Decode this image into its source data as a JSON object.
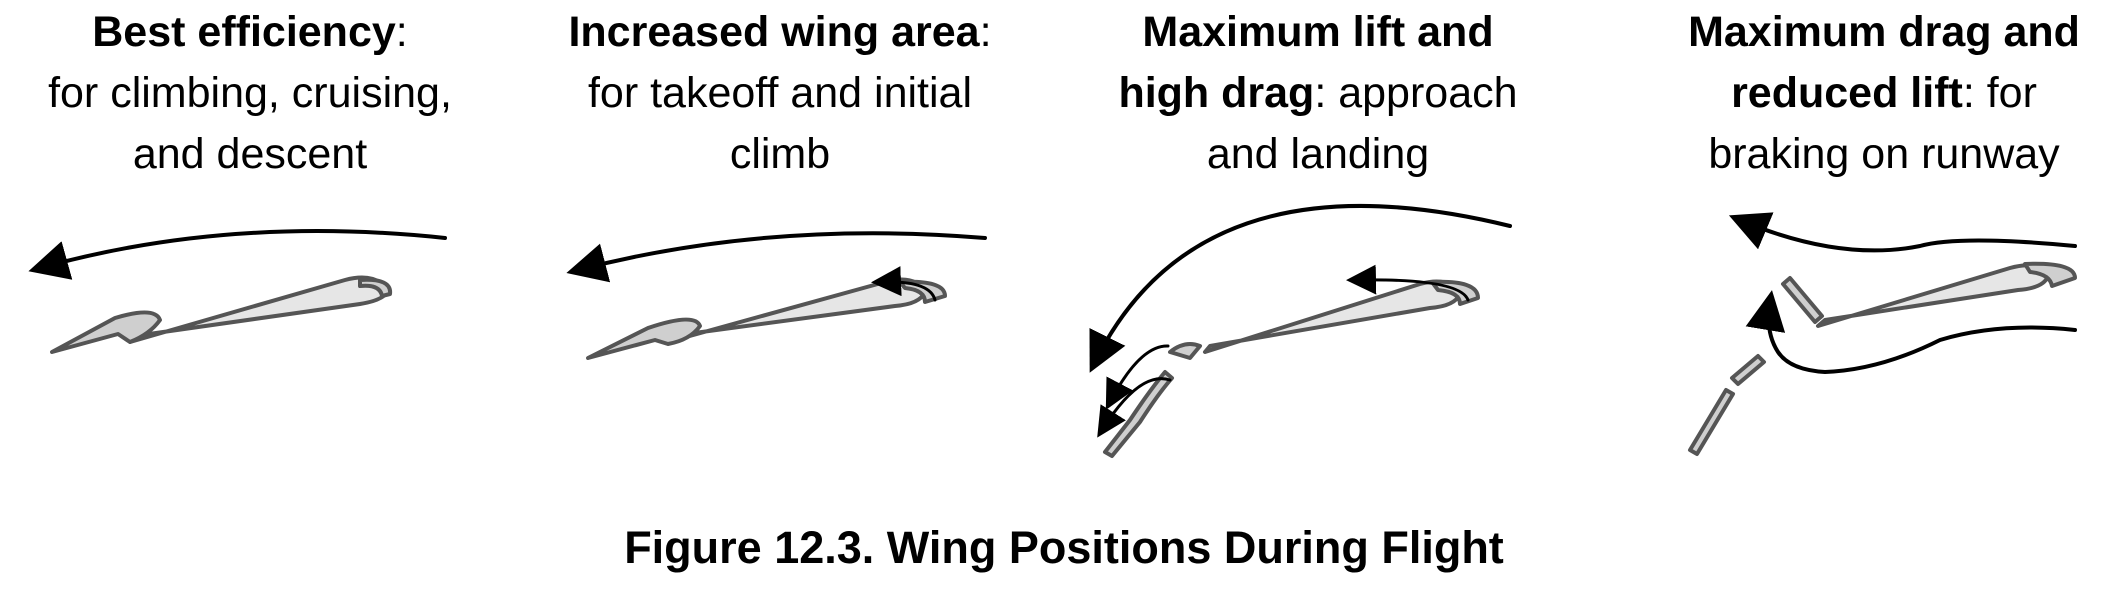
{
  "panels": [
    {
      "heading": "Best efficiency",
      "rest_line1": ":",
      "line2": "for climbing, cruising,",
      "line3": "and descent"
    },
    {
      "heading": "Increased wing area",
      "rest_line1": ":",
      "line2": "for takeoff and initial",
      "line3": "climb"
    },
    {
      "heading_line1": "Maximum lift and",
      "heading_line2": "high drag",
      "rest_line2": ": approach",
      "line3": "and landing"
    },
    {
      "heading_line1": "Maximum drag and",
      "heading_line2": "reduced lift",
      "rest_line2": ": for",
      "line3": "braking on runway"
    }
  ],
  "figure_title": "Figure 12.3. Wing Positions During Flight",
  "colors": {
    "wing_fill": "#e6e6e6",
    "wing_stroke": "#555555",
    "arrow": "#000000"
  }
}
